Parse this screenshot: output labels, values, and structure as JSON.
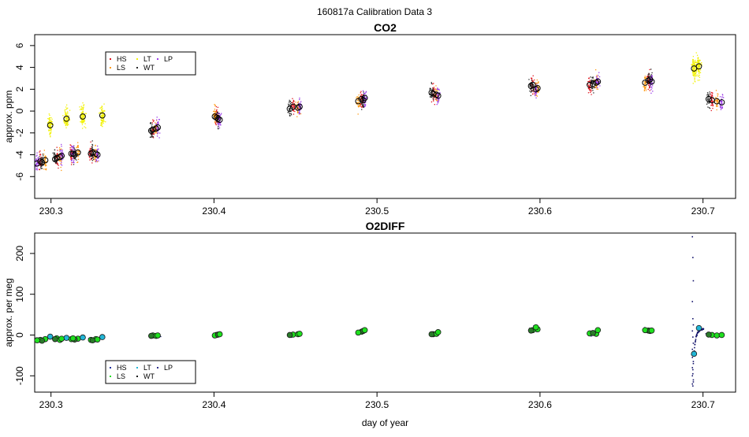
{
  "page_title": "160817a   Calibration Data 3",
  "colors": {
    "HS": "#e0141e",
    "LS": "#ff9a12",
    "LT": "#f2f20a",
    "WT": "#2a2a2a",
    "LP": "#9a3ae8",
    "marker_open": "#000000"
  },
  "colors_o2": {
    "HS": "#1d2fa0",
    "LS": "#1fe01f",
    "LT": "#22b6d6",
    "WT": "#1a1a1a",
    "LP": "#2c2c8c",
    "dense": "#13136b"
  },
  "chart_data": [
    {
      "type": "scatter",
      "title": "CO2",
      "xlabel": "",
      "ylabel": "approx. ppm",
      "xlim": [
        0.29,
        0.72
      ],
      "ylim": [
        -8,
        7
      ],
      "x_ticks": [
        0.3,
        0.4,
        0.5,
        0.6,
        0.7
      ],
      "x_tick_labels": [
        "230.3",
        "230.4",
        "230.5",
        "230.6",
        "230.7"
      ],
      "y_ticks": [
        -6,
        -4,
        -2,
        0,
        2,
        4,
        6
      ],
      "y_tick_labels": [
        "-6",
        "-4",
        "-2",
        "0",
        "2",
        "4",
        "6"
      ],
      "legend": {
        "position": "top-left",
        "entries": [
          "HS",
          "LS",
          "LT",
          "WT",
          "LP"
        ]
      },
      "series": [
        {
          "name": "HS",
          "x": [
            0.2935,
            0.3035,
            0.3125,
            0.3245,
            0.3625,
            0.4015,
            0.4485,
            0.4905,
            0.5345,
            0.5955,
            0.6305,
            0.6665,
            0.7055
          ],
          "y": [
            -4.6,
            -4.3,
            -3.9,
            -3.9,
            -1.7,
            -0.6,
            0.4,
            1.1,
            1.6,
            2.4,
            2.4,
            2.8,
            1.0
          ]
        },
        {
          "name": "LS",
          "x": [
            0.2965,
            0.3055,
            0.3165,
            0.3275,
            0.3645,
            0.4005,
            0.4515,
            0.4885,
            0.5365,
            0.5985,
            0.6345,
            0.6645,
            0.7085
          ],
          "y": [
            -4.5,
            -4.2,
            -3.8,
            -3.9,
            -1.6,
            -0.5,
            0.3,
            0.9,
            1.5,
            2.1,
            2.6,
            2.6,
            0.9
          ]
        },
        {
          "name": "LT",
          "x": [
            0.2995,
            0.3095,
            0.3195,
            0.3315,
            0.6945,
            0.6975
          ],
          "y": [
            -1.3,
            -0.7,
            -0.5,
            -0.4,
            3.9,
            4.1
          ]
        },
        {
          "name": "WT",
          "x": [
            0.2945,
            0.3025,
            0.3145,
            0.3255,
            0.3615,
            0.4025,
            0.4465,
            0.4915,
            0.5335,
            0.5945,
            0.6325,
            0.6675,
            0.7035
          ],
          "y": [
            -4.7,
            -4.4,
            -4.0,
            -3.8,
            -1.8,
            -0.7,
            0.2,
            1.0,
            1.7,
            2.3,
            2.5,
            2.9,
            1.1
          ]
        },
        {
          "name": "LP",
          "x": [
            0.2915,
            0.3065,
            0.3135,
            0.3285,
            0.3655,
            0.4035,
            0.4525,
            0.4925,
            0.5375,
            0.5975,
            0.6355,
            0.6685,
            0.7115
          ],
          "y": [
            -4.8,
            -4.1,
            -3.9,
            -4.0,
            -1.5,
            -0.8,
            0.4,
            1.2,
            1.4,
            2.0,
            2.7,
            2.7,
            0.8
          ]
        }
      ]
    },
    {
      "type": "scatter",
      "title": "O2DIFF",
      "xlabel": "day of year",
      "ylabel": "approx. per meg",
      "xlim": [
        0.29,
        0.72
      ],
      "ylim": [
        -140,
        250
      ],
      "x_ticks": [
        0.3,
        0.4,
        0.5,
        0.6,
        0.7
      ],
      "x_tick_labels": [
        "230.3",
        "230.4",
        "230.5",
        "230.6",
        "230.7"
      ],
      "y_ticks": [
        -100,
        0,
        100,
        200
      ],
      "y_tick_labels": [
        "-100",
        "0",
        "100",
        "200"
      ],
      "legend": {
        "position": "bottom-left",
        "entries": [
          "HS",
          "LS",
          "LT",
          "WT",
          "LP"
        ]
      },
      "series": [
        {
          "name": "HS",
          "x": [
            0.2935,
            0.3035,
            0.3125,
            0.3245,
            0.3625,
            0.4015,
            0.4485,
            0.4905,
            0.5345,
            0.5955,
            0.6305,
            0.6665,
            0.7055
          ],
          "y": [
            -12,
            -8,
            -10,
            -12,
            -1,
            0,
            1,
            8,
            2,
            12,
            4,
            11,
            0
          ]
        },
        {
          "name": "LS",
          "x": [
            0.2965,
            0.3055,
            0.3165,
            0.3275,
            0.3645,
            0.4005,
            0.4515,
            0.4885,
            0.5365,
            0.5985,
            0.6345,
            0.6645,
            0.7085
          ],
          "y": [
            -10,
            -12,
            -9,
            -10,
            -2,
            -1,
            2,
            6,
            3,
            14,
            3,
            12,
            -1
          ]
        },
        {
          "name": "LT",
          "x": [
            0.2995,
            0.3095,
            0.3195,
            0.3315,
            0.6945,
            0.6975
          ],
          "y": [
            -4,
            -7,
            -6,
            -5,
            -46,
            17
          ]
        },
        {
          "name": "WT",
          "x": [
            0.2945,
            0.3025,
            0.3145,
            0.3255,
            0.3615,
            0.4025,
            0.4465,
            0.4915,
            0.5335,
            0.5945,
            0.6325,
            0.6675,
            0.7035
          ],
          "y": [
            -14,
            -10,
            -11,
            -13,
            -2,
            1,
            0,
            10,
            2,
            11,
            5,
            10,
            1
          ]
        },
        {
          "name": "LP",
          "x": [
            0.2915,
            0.3065,
            0.3135,
            0.3285,
            0.3655,
            0.4035,
            0.4525,
            0.4925,
            0.5375,
            0.5975,
            0.6355,
            0.6685,
            0.7115
          ],
          "y": [
            -13,
            -9,
            -8,
            -11,
            -1,
            2,
            3,
            12,
            7,
            19,
            12,
            11,
            0
          ]
        }
      ]
    }
  ]
}
